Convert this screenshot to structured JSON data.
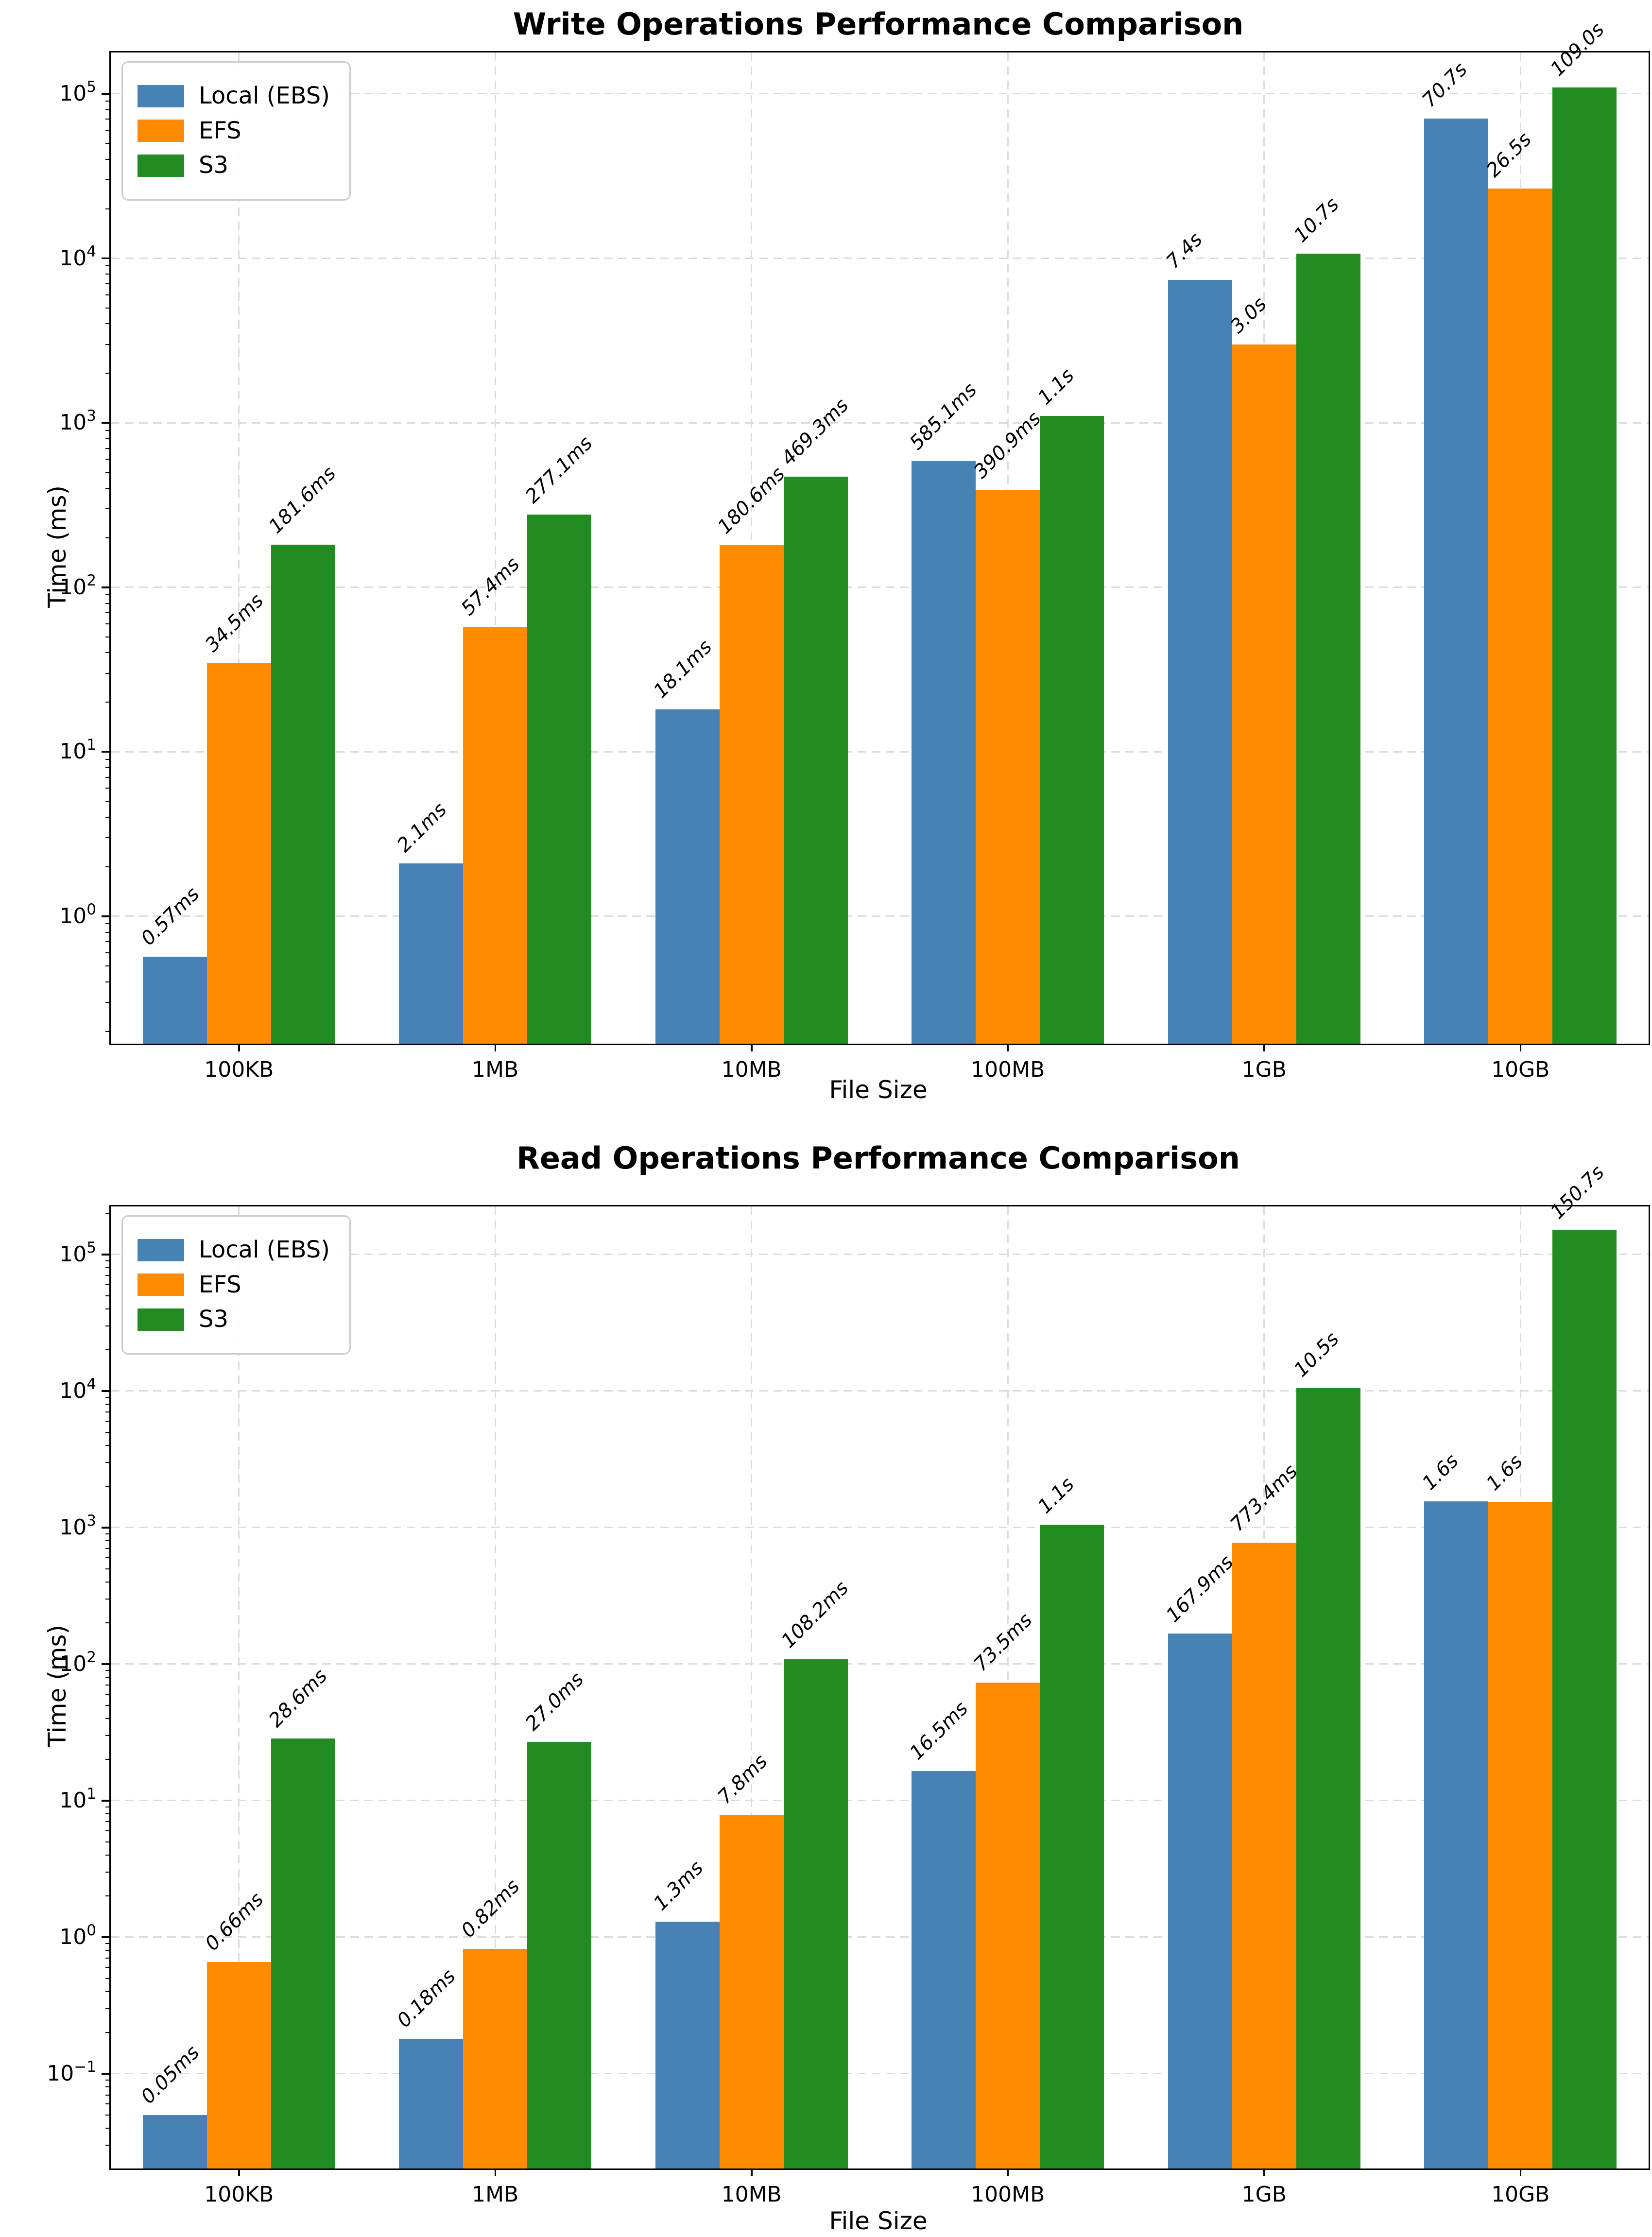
{
  "colors": {
    "local": "#4682B4",
    "efs": "#FF8C00",
    "s3": "#228B22",
    "grid": "#DCDCDC",
    "text": "#000000",
    "legend_border": "#CCCCCC"
  },
  "chart_data": [
    {
      "type": "bar",
      "title": "Write Operations Performance Comparison",
      "xlabel": "File Size",
      "ylabel": "Time (ms)",
      "yscale": "log",
      "grid": true,
      "legend_position": "upper-left",
      "categories": [
        "100KB",
        "1MB",
        "10MB",
        "100MB",
        "1GB",
        "10GB"
      ],
      "series": [
        {
          "name": "Local (EBS)",
          "color_key": "local",
          "values": [
            0.57,
            2.1,
            18.1,
            585.1,
            7400,
            70700
          ],
          "labels": [
            "0.57ms",
            "2.1ms",
            "18.1ms",
            "585.1ms",
            "7.4s",
            "70.7s"
          ]
        },
        {
          "name": "EFS",
          "color_key": "efs",
          "values": [
            34.5,
            57.4,
            180.6,
            390.9,
            3000,
            26500
          ],
          "labels": [
            "34.5ms",
            "57.4ms",
            "180.6ms",
            "390.9ms",
            "3.0s",
            "26.5s"
          ]
        },
        {
          "name": "S3",
          "color_key": "s3",
          "values": [
            181.6,
            277.1,
            469.3,
            1100,
            10700,
            109000
          ],
          "labels": [
            "181.6ms",
            "277.1ms",
            "469.3ms",
            "1.1s",
            "10.7s",
            "109.0s"
          ]
        }
      ],
      "ytick_exponents": [
        0,
        1,
        2,
        3,
        4,
        5
      ],
      "ylim_exponents": [
        -0.774,
        5.251
      ]
    },
    {
      "type": "bar",
      "title": "Read Operations Performance Comparison",
      "xlabel": "File Size",
      "ylabel": "Time (ms)",
      "yscale": "log",
      "grid": true,
      "legend_position": "upper-left",
      "categories": [
        "100KB",
        "1MB",
        "10MB",
        "100MB",
        "1GB",
        "10GB"
      ],
      "series": [
        {
          "name": "Local (EBS)",
          "color_key": "local",
          "values": [
            0.05,
            0.18,
            1.3,
            16.5,
            167.9,
            1560
          ],
          "labels": [
            "0.05ms",
            "0.18ms",
            "1.3ms",
            "16.5ms",
            "167.9ms",
            "1.6s"
          ]
        },
        {
          "name": "EFS",
          "color_key": "efs",
          "values": [
            0.66,
            0.82,
            7.8,
            73.5,
            773.4,
            1540
          ],
          "labels": [
            "0.66ms",
            "0.82ms",
            "7.8ms",
            "73.5ms",
            "773.4ms",
            "1.6s"
          ]
        },
        {
          "name": "S3",
          "color_key": "s3",
          "values": [
            28.6,
            27.0,
            108.2,
            1050,
            10500,
            150700
          ],
          "labels": [
            "28.6ms",
            "27.0ms",
            "108.2ms",
            "1.1s",
            "10.5s",
            "150.7s"
          ]
        }
      ],
      "ytick_exponents": [
        -1,
        0,
        1,
        2,
        3,
        4,
        5
      ],
      "ylim_exponents": [
        -1.694,
        5.352
      ]
    }
  ]
}
